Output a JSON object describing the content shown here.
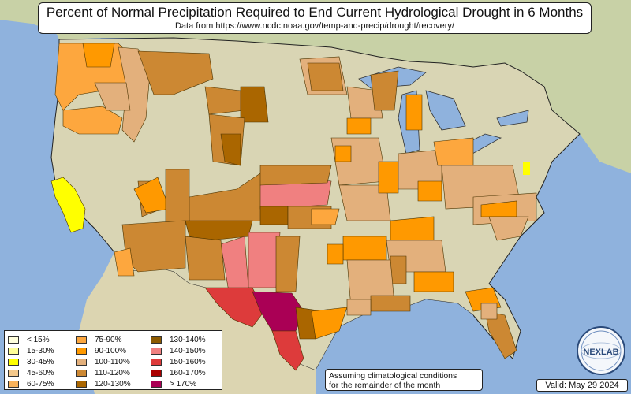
{
  "title": "Percent of Normal Precipitation Required to End Current Hydrological Drought in 6 Months",
  "subtitle": "Data from https://www.ncdc.noaa.gov/temp-and-precip/drought/recovery/",
  "legend": [
    {
      "label": "< 15%",
      "color": "#ffffdd"
    },
    {
      "label": "15-30%",
      "color": "#ffff99"
    },
    {
      "label": "30-45%",
      "color": "#ffff00"
    },
    {
      "label": "45-60%",
      "color": "#f5c98c"
    },
    {
      "label": "60-75%",
      "color": "#f9b25a"
    },
    {
      "label": "75-90%",
      "color": "#fda73e"
    },
    {
      "label": "90-100%",
      "color": "#ff9900"
    },
    {
      "label": "100-110%",
      "color": "#e3b07c"
    },
    {
      "label": "110-120%",
      "color": "#cc8833"
    },
    {
      "label": "120-130%",
      "color": "#aa6600"
    },
    {
      "label": "130-140%",
      "color": "#8c5a00"
    },
    {
      "label": "140-150%",
      "color": "#f08080"
    },
    {
      "label": "150-160%",
      "color": "#dd3b3b"
    },
    {
      "label": "160-170%",
      "color": "#aa0000"
    },
    {
      "label": "> 170%",
      "color": "#aa0055"
    }
  ],
  "note_line1": "Assuming climatological conditions",
  "note_line2": "for the remainder of the month",
  "valid": "Valid: May 29 2024",
  "logo_text": "NEXLAB",
  "colors": {
    "ocean": "#8fb2dd",
    "land": "#d7d6b8",
    "canada": "#c9cfa9",
    "mexico": "#d9d3b0"
  }
}
